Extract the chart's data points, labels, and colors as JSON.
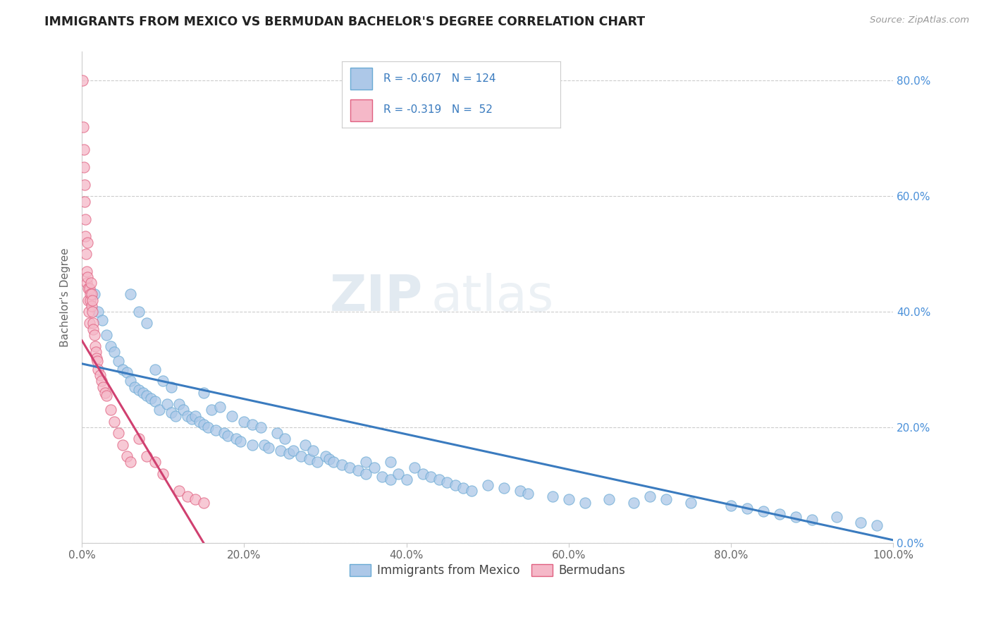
{
  "title": "IMMIGRANTS FROM MEXICO VS BERMUDAN BACHELOR'S DEGREE CORRELATION CHART",
  "source": "Source: ZipAtlas.com",
  "ylabel": "Bachelor's Degree",
  "legend_entries": [
    "Immigrants from Mexico",
    "Bermudans"
  ],
  "blue_color": "#adc8e8",
  "pink_color": "#f5b8c8",
  "blue_edge_color": "#6aaad4",
  "pink_edge_color": "#e06080",
  "blue_line_color": "#3a7bbf",
  "pink_line_color": "#d04070",
  "background_color": "#ffffff",
  "watermark_zip": "ZIP",
  "watermark_atlas": "atlas",
  "xlim": [
    0.0,
    100.0
  ],
  "ylim": [
    0.0,
    85.0
  ],
  "xticks": [
    0.0,
    20.0,
    40.0,
    60.0,
    80.0,
    100.0
  ],
  "yticks": [
    0.0,
    20.0,
    40.0,
    60.0,
    80.0
  ],
  "blue_reg_x0": 0.0,
  "blue_reg_y0": 31.0,
  "blue_reg_x1": 100.0,
  "blue_reg_y1": 0.5,
  "pink_reg_x0": 0.0,
  "pink_reg_y0": 35.0,
  "pink_reg_x1": 15.0,
  "pink_reg_y1": 0.0,
  "blue_scatter_x": [
    1.5,
    2.0,
    2.5,
    3.0,
    3.5,
    4.0,
    4.5,
    5.0,
    5.5,
    6.0,
    6.0,
    6.5,
    7.0,
    7.0,
    7.5,
    8.0,
    8.0,
    8.5,
    9.0,
    9.0,
    9.5,
    10.0,
    10.5,
    11.0,
    11.5,
    11.0,
    12.0,
    12.5,
    13.0,
    13.5,
    14.0,
    14.5,
    15.0,
    15.0,
    15.5,
    16.0,
    16.5,
    17.0,
    17.5,
    18.0,
    18.5,
    19.0,
    19.5,
    20.0,
    21.0,
    21.0,
    22.0,
    22.5,
    23.0,
    24.0,
    24.5,
    25.0,
    25.5,
    26.0,
    27.0,
    27.5,
    28.0,
    28.5,
    29.0,
    30.0,
    30.5,
    31.0,
    32.0,
    33.0,
    34.0,
    35.0,
    35.0,
    36.0,
    37.0,
    38.0,
    38.0,
    39.0,
    40.0,
    41.0,
    42.0,
    43.0,
    44.0,
    45.0,
    46.0,
    47.0,
    48.0,
    50.0,
    52.0,
    54.0,
    55.0,
    58.0,
    60.0,
    62.0,
    65.0,
    68.0,
    70.0,
    72.0,
    75.0,
    80.0,
    82.0,
    84.0,
    86.0,
    88.0,
    90.0,
    93.0,
    96.0,
    98.0
  ],
  "blue_scatter_y": [
    43.0,
    40.0,
    38.5,
    36.0,
    34.0,
    33.0,
    31.5,
    30.0,
    29.5,
    28.0,
    43.0,
    27.0,
    26.5,
    40.0,
    26.0,
    25.5,
    38.0,
    25.0,
    24.5,
    30.0,
    23.0,
    28.0,
    24.0,
    22.5,
    22.0,
    27.0,
    24.0,
    23.0,
    22.0,
    21.5,
    22.0,
    21.0,
    20.5,
    26.0,
    20.0,
    23.0,
    19.5,
    23.5,
    19.0,
    18.5,
    22.0,
    18.0,
    17.5,
    21.0,
    20.5,
    17.0,
    20.0,
    17.0,
    16.5,
    19.0,
    16.0,
    18.0,
    15.5,
    16.0,
    15.0,
    17.0,
    14.5,
    16.0,
    14.0,
    15.0,
    14.5,
    14.0,
    13.5,
    13.0,
    12.5,
    14.0,
    12.0,
    13.0,
    11.5,
    14.0,
    11.0,
    12.0,
    11.0,
    13.0,
    12.0,
    11.5,
    11.0,
    10.5,
    10.0,
    9.5,
    9.0,
    10.0,
    9.5,
    9.0,
    8.5,
    8.0,
    7.5,
    7.0,
    7.5,
    7.0,
    8.0,
    7.5,
    7.0,
    6.5,
    6.0,
    5.5,
    5.0,
    4.5,
    4.0,
    4.5,
    3.5,
    3.0
  ],
  "pink_scatter_x": [
    0.1,
    0.15,
    0.2,
    0.25,
    0.3,
    0.35,
    0.4,
    0.45,
    0.5,
    0.55,
    0.6,
    0.65,
    0.7,
    0.75,
    0.8,
    0.85,
    0.9,
    0.95,
    1.0,
    1.05,
    1.1,
    1.15,
    1.2,
    1.25,
    1.3,
    1.35,
    1.4,
    1.5,
    1.6,
    1.7,
    1.8,
    1.9,
    2.0,
    2.2,
    2.4,
    2.6,
    2.8,
    3.0,
    3.5,
    4.0,
    4.5,
    5.0,
    5.5,
    6.0,
    7.0,
    8.0,
    9.0,
    10.0,
    12.0,
    13.0,
    14.0,
    15.0
  ],
  "pink_scatter_y": [
    80.0,
    72.0,
    68.0,
    65.0,
    62.0,
    59.0,
    56.0,
    53.0,
    50.0,
    47.0,
    45.0,
    46.0,
    52.0,
    44.0,
    42.0,
    40.0,
    38.0,
    44.0,
    43.0,
    42.0,
    45.0,
    43.0,
    41.0,
    42.0,
    40.0,
    38.0,
    37.0,
    36.0,
    34.0,
    33.0,
    32.0,
    31.5,
    30.0,
    29.0,
    28.0,
    27.0,
    26.0,
    25.5,
    23.0,
    21.0,
    19.0,
    17.0,
    15.0,
    14.0,
    18.0,
    15.0,
    14.0,
    12.0,
    9.0,
    8.0,
    7.5,
    7.0
  ]
}
